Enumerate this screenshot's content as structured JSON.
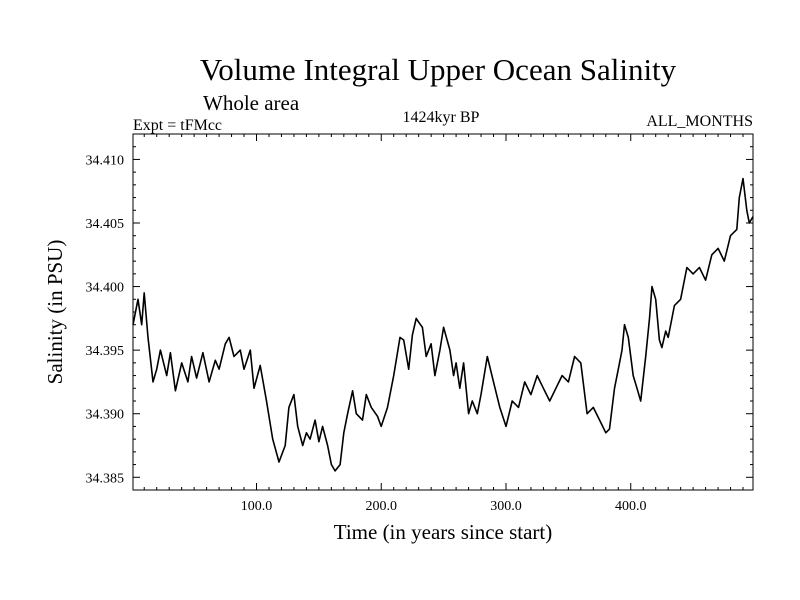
{
  "chart_data": {
    "type": "line",
    "title": "Volume Integral Upper Ocean Salinity",
    "subtitle": "Whole area",
    "left_header": "Expt = tFMcc",
    "center_header": "1424kyr BP",
    "right_header": "ALL_MONTHS",
    "xlabel": "Time (in years since start)",
    "ylabel": "Salinity (in PSU)",
    "xlim": [
      1,
      498
    ],
    "ylim": [
      34.384,
      34.412
    ],
    "x_ticks": [
      100,
      200,
      300,
      400
    ],
    "x_tick_labels": [
      "100.0",
      "200.0",
      "300.0",
      "400.0"
    ],
    "y_ticks": [
      34.385,
      34.39,
      34.395,
      34.4,
      34.405,
      34.41
    ],
    "y_tick_labels": [
      "34.385",
      "34.390",
      "34.395",
      "34.400",
      "34.405",
      "34.410"
    ],
    "grid": false,
    "series": [
      {
        "name": "Salinity",
        "x": [
          1,
          5,
          8,
          10,
          13,
          17,
          20,
          23,
          28,
          31,
          35,
          40,
          45,
          48,
          52,
          57,
          62,
          67,
          70,
          75,
          78,
          82,
          87,
          90,
          95,
          98,
          103,
          108,
          113,
          118,
          123,
          126,
          130,
          133,
          137,
          140,
          143,
          147,
          150,
          153,
          157,
          160,
          163,
          167,
          170,
          173,
          177,
          180,
          185,
          188,
          192,
          197,
          200,
          205,
          210,
          215,
          218,
          222,
          225,
          228,
          230,
          233,
          236,
          240,
          243,
          247,
          250,
          255,
          258,
          260,
          263,
          266,
          270,
          273,
          277,
          280,
          285,
          290,
          295,
          300,
          305,
          310,
          315,
          320,
          325,
          330,
          335,
          340,
          345,
          350,
          355,
          360,
          365,
          370,
          375,
          380,
          383,
          387,
          390,
          393,
          395,
          398,
          402,
          405,
          408,
          412,
          415,
          417,
          420,
          423,
          425,
          428,
          430,
          435,
          440,
          445,
          450,
          455,
          460,
          465,
          470,
          475,
          480,
          485,
          487,
          490,
          493,
          495,
          498
        ],
        "y": [
          34.397,
          34.399,
          34.397,
          34.3995,
          34.396,
          34.3925,
          34.3935,
          34.395,
          34.393,
          34.3948,
          34.3918,
          34.394,
          34.3925,
          34.3945,
          34.3928,
          34.3948,
          34.3925,
          34.3942,
          34.3935,
          34.3955,
          34.396,
          34.3945,
          34.395,
          34.3935,
          34.395,
          34.392,
          34.3938,
          34.391,
          34.388,
          34.3862,
          34.3875,
          34.3905,
          34.3915,
          34.389,
          34.3875,
          34.3885,
          34.388,
          34.3895,
          34.3878,
          34.389,
          34.3875,
          34.386,
          34.3855,
          34.386,
          34.3885,
          34.39,
          34.3918,
          34.39,
          34.3895,
          34.3915,
          34.3905,
          34.3898,
          34.389,
          34.3905,
          34.393,
          34.396,
          34.3958,
          34.3935,
          34.3962,
          34.3975,
          34.3972,
          34.3968,
          34.3945,
          34.3955,
          34.393,
          34.395,
          34.3968,
          34.395,
          34.393,
          34.394,
          34.392,
          34.394,
          34.39,
          34.391,
          34.39,
          34.3915,
          34.3945,
          34.3925,
          34.3905,
          34.389,
          34.391,
          34.3905,
          34.3925,
          34.3915,
          34.393,
          34.392,
          34.391,
          34.392,
          34.393,
          34.3925,
          34.3945,
          34.394,
          34.39,
          34.3905,
          34.3895,
          34.3885,
          34.3888,
          34.392,
          34.3935,
          34.395,
          34.397,
          34.396,
          34.393,
          34.392,
          34.391,
          34.3945,
          34.3975,
          34.4,
          34.399,
          34.3958,
          34.3952,
          34.3965,
          34.396,
          34.3985,
          34.399,
          34.4015,
          34.401,
          34.4015,
          34.4005,
          34.4025,
          34.403,
          34.402,
          34.404,
          34.4045,
          34.407,
          34.4085,
          34.406,
          34.405,
          34.4055
        ]
      }
    ]
  }
}
